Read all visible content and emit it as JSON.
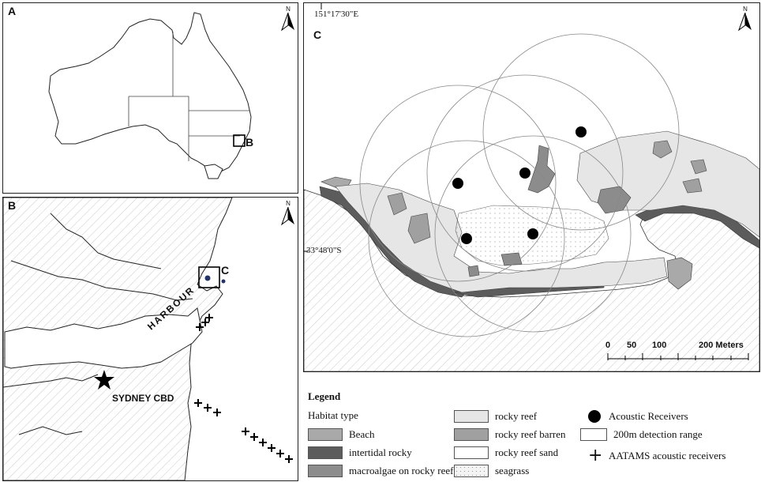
{
  "panels": {
    "a": {
      "label": "A",
      "inset_label": "B"
    },
    "b": {
      "label": "B",
      "inset_label": "C",
      "harbour_text": "HARBOUR",
      "cbd_text": "SYDNEY CBD"
    },
    "c": {
      "label": "C",
      "lon_label": "151°17'30\"E",
      "lat_label": "33°48'0\"S",
      "scale_ticks": [
        "0",
        "50",
        "100",
        "200 Meters"
      ]
    }
  },
  "north": {
    "label": "N"
  },
  "legend": {
    "title": "Legend",
    "subtitle": "Habitat type",
    "habitats": [
      {
        "label": "Beach",
        "color": "#a9a9a9"
      },
      {
        "label": "intertidal rocky",
        "color": "#5c5c5c"
      },
      {
        "label": "macroalgae on rocky reef",
        "color": "#8c8c8c"
      },
      {
        "label": "rocky reef",
        "color": "#e6e6e6"
      },
      {
        "label": "rocky reef barren",
        "color": "#a0a0a0"
      },
      {
        "label": "rocky reef sand",
        "color": "#ffffff"
      },
      {
        "label": "seagrass",
        "color": "#f4f4f4"
      }
    ],
    "symbols": [
      {
        "label": "Acoustic Receivers",
        "icon": "filled-circle"
      },
      {
        "label": "200m detection range",
        "icon": "open-rectangle"
      },
      {
        "label": "AATAMS acoustic receivers",
        "icon": "plus-sign"
      }
    ]
  }
}
